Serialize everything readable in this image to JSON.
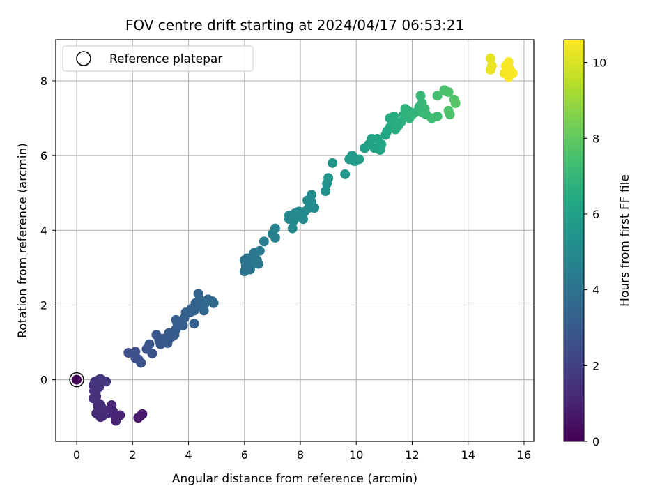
{
  "chart_data": {
    "type": "scatter",
    "title": "FOV centre drift starting at 2024/04/17 06:53:21",
    "xlabel": "Angular distance from reference (arcmin)",
    "ylabel": "Rotation from reference (arcmin)",
    "xlim": [
      -0.75,
      16.35
    ],
    "ylim": [
      -1.65,
      9.1
    ],
    "xticks": [
      0,
      2,
      4,
      6,
      8,
      10,
      12,
      14,
      16
    ],
    "yticks": [
      0,
      2,
      4,
      6,
      8
    ],
    "grid": true,
    "legend": {
      "position": "top-left",
      "entries": [
        "Reference platepar"
      ]
    },
    "reference_point": {
      "x": 0,
      "y": 0
    },
    "colorbar": {
      "label": "Hours from first FF file",
      "colormap": "viridis",
      "range": [
        0,
        10.6
      ],
      "ticks": [
        0,
        2,
        4,
        6,
        8,
        10
      ]
    },
    "points": [
      {
        "x": 0.0,
        "y": 0.0,
        "t": 0.1
      },
      {
        "x": 2.2,
        "y": -1.02,
        "t": 0.7
      },
      {
        "x": 2.35,
        "y": -0.92,
        "t": 0.7
      },
      {
        "x": 2.28,
        "y": -0.97,
        "t": 0.75
      },
      {
        "x": 1.4,
        "y": -1.1,
        "t": 1.0
      },
      {
        "x": 1.38,
        "y": -0.98,
        "t": 1.05
      },
      {
        "x": 1.55,
        "y": -0.95,
        "t": 1.05
      },
      {
        "x": 1.25,
        "y": -0.68,
        "t": 1.1
      },
      {
        "x": 1.3,
        "y": -0.85,
        "t": 1.1
      },
      {
        "x": 1.1,
        "y": -0.9,
        "t": 1.15
      },
      {
        "x": 0.95,
        "y": -0.95,
        "t": 1.2
      },
      {
        "x": 0.85,
        "y": -1.0,
        "t": 1.2
      },
      {
        "x": 0.7,
        "y": -0.9,
        "t": 1.25
      },
      {
        "x": 0.8,
        "y": -0.85,
        "t": 1.25
      },
      {
        "x": 0.9,
        "y": -0.75,
        "t": 1.3
      },
      {
        "x": 1.0,
        "y": -0.85,
        "t": 1.3
      },
      {
        "x": 0.75,
        "y": -0.7,
        "t": 1.35
      },
      {
        "x": 0.82,
        "y": -0.65,
        "t": 1.35
      },
      {
        "x": 0.6,
        "y": -0.5,
        "t": 1.4
      },
      {
        "x": 0.7,
        "y": -0.45,
        "t": 1.45
      },
      {
        "x": 0.62,
        "y": -0.3,
        "t": 1.45
      },
      {
        "x": 0.7,
        "y": -0.25,
        "t": 1.5
      },
      {
        "x": 0.6,
        "y": -0.15,
        "t": 1.5
      },
      {
        "x": 0.72,
        "y": -0.1,
        "t": 1.55
      },
      {
        "x": 0.65,
        "y": -0.05,
        "t": 1.55
      },
      {
        "x": 0.8,
        "y": 0.0,
        "t": 1.6
      },
      {
        "x": 0.9,
        "y": -0.02,
        "t": 1.6
      },
      {
        "x": 1.05,
        "y": -0.05,
        "t": 1.65
      },
      {
        "x": 0.85,
        "y": 0.02,
        "t": 1.65
      },
      {
        "x": 0.8,
        "y": -0.2,
        "t": 1.6
      },
      {
        "x": 0.68,
        "y": -0.35,
        "t": 1.5
      },
      {
        "x": 1.85,
        "y": 0.72,
        "t": 2.5
      },
      {
        "x": 2.1,
        "y": 0.75,
        "t": 2.55
      },
      {
        "x": 2.1,
        "y": 0.58,
        "t": 2.6
      },
      {
        "x": 2.2,
        "y": 0.55,
        "t": 2.6
      },
      {
        "x": 2.3,
        "y": 0.45,
        "t": 2.65
      },
      {
        "x": 2.7,
        "y": 0.7,
        "t": 2.7
      },
      {
        "x": 2.5,
        "y": 0.82,
        "t": 2.75
      },
      {
        "x": 2.6,
        "y": 0.95,
        "t": 2.75
      },
      {
        "x": 2.85,
        "y": 1.2,
        "t": 2.8
      },
      {
        "x": 2.95,
        "y": 1.05,
        "t": 2.85
      },
      {
        "x": 3.0,
        "y": 0.95,
        "t": 2.85
      },
      {
        "x": 3.1,
        "y": 1.1,
        "t": 2.9
      },
      {
        "x": 3.2,
        "y": 1.05,
        "t": 2.9
      },
      {
        "x": 3.25,
        "y": 0.98,
        "t": 2.95
      },
      {
        "x": 3.3,
        "y": 1.25,
        "t": 3.0
      },
      {
        "x": 3.4,
        "y": 1.15,
        "t": 3.0
      },
      {
        "x": 3.5,
        "y": 1.2,
        "t": 3.05
      },
      {
        "x": 3.55,
        "y": 1.35,
        "t": 3.05
      },
      {
        "x": 3.6,
        "y": 1.5,
        "t": 3.1
      },
      {
        "x": 3.55,
        "y": 1.6,
        "t": 3.1
      },
      {
        "x": 3.7,
        "y": 1.55,
        "t": 3.15
      },
      {
        "x": 3.8,
        "y": 1.45,
        "t": 3.15
      },
      {
        "x": 3.85,
        "y": 1.65,
        "t": 3.2
      },
      {
        "x": 3.9,
        "y": 1.8,
        "t": 3.25
      },
      {
        "x": 4.05,
        "y": 1.8,
        "t": 3.3
      },
      {
        "x": 4.1,
        "y": 1.9,
        "t": 3.3
      },
      {
        "x": 4.2,
        "y": 1.85,
        "t": 3.35
      },
      {
        "x": 4.25,
        "y": 2.05,
        "t": 3.35
      },
      {
        "x": 4.35,
        "y": 2.0,
        "t": 3.4
      },
      {
        "x": 4.4,
        "y": 2.15,
        "t": 3.4
      },
      {
        "x": 4.35,
        "y": 2.3,
        "t": 3.45
      },
      {
        "x": 4.5,
        "y": 1.95,
        "t": 3.45
      },
      {
        "x": 4.55,
        "y": 1.85,
        "t": 3.5
      },
      {
        "x": 4.6,
        "y": 2.05,
        "t": 3.5
      },
      {
        "x": 4.7,
        "y": 2.15,
        "t": 3.55
      },
      {
        "x": 4.85,
        "y": 2.1,
        "t": 3.55
      },
      {
        "x": 4.9,
        "y": 2.05,
        "t": 3.6
      },
      {
        "x": 4.2,
        "y": 1.5,
        "t": 3.2
      },
      {
        "x": 3.3,
        "y": 1.1,
        "t": 3.0
      },
      {
        "x": 6.0,
        "y": 2.9,
        "t": 4.0
      },
      {
        "x": 6.05,
        "y": 3.05,
        "t": 4.0
      },
      {
        "x": 6.0,
        "y": 3.2,
        "t": 4.05
      },
      {
        "x": 6.1,
        "y": 3.25,
        "t": 4.05
      },
      {
        "x": 6.2,
        "y": 3.0,
        "t": 4.1
      },
      {
        "x": 6.25,
        "y": 3.15,
        "t": 4.1
      },
      {
        "x": 6.3,
        "y": 3.3,
        "t": 4.15
      },
      {
        "x": 6.35,
        "y": 3.4,
        "t": 4.15
      },
      {
        "x": 6.45,
        "y": 3.2,
        "t": 4.2
      },
      {
        "x": 6.5,
        "y": 3.1,
        "t": 4.2
      },
      {
        "x": 6.55,
        "y": 3.45,
        "t": 4.25
      },
      {
        "x": 6.2,
        "y": 2.95,
        "t": 4.05
      },
      {
        "x": 6.7,
        "y": 3.7,
        "t": 4.5
      },
      {
        "x": 7.0,
        "y": 3.9,
        "t": 4.6
      },
      {
        "x": 7.1,
        "y": 4.05,
        "t": 4.65
      },
      {
        "x": 7.1,
        "y": 3.8,
        "t": 4.6
      },
      {
        "x": 7.6,
        "y": 4.3,
        "t": 4.8
      },
      {
        "x": 7.6,
        "y": 4.4,
        "t": 4.85
      },
      {
        "x": 7.75,
        "y": 4.25,
        "t": 4.85
      },
      {
        "x": 7.72,
        "y": 4.05,
        "t": 4.9
      },
      {
        "x": 7.85,
        "y": 4.35,
        "t": 4.9
      },
      {
        "x": 7.8,
        "y": 4.45,
        "t": 4.95
      },
      {
        "x": 7.95,
        "y": 4.5,
        "t": 4.95
      },
      {
        "x": 8.1,
        "y": 4.3,
        "t": 5.0
      },
      {
        "x": 8.15,
        "y": 4.5,
        "t": 5.0
      },
      {
        "x": 8.25,
        "y": 4.8,
        "t": 5.05
      },
      {
        "x": 8.3,
        "y": 4.6,
        "t": 5.05
      },
      {
        "x": 8.4,
        "y": 4.75,
        "t": 5.1
      },
      {
        "x": 8.5,
        "y": 4.6,
        "t": 5.1
      },
      {
        "x": 8.4,
        "y": 4.95,
        "t": 5.15
      },
      {
        "x": 8.9,
        "y": 5.05,
        "t": 5.3
      },
      {
        "x": 8.95,
        "y": 5.25,
        "t": 5.35
      },
      {
        "x": 9.0,
        "y": 5.4,
        "t": 5.4
      },
      {
        "x": 9.15,
        "y": 5.8,
        "t": 5.5
      },
      {
        "x": 9.6,
        "y": 5.5,
        "t": 5.6
      },
      {
        "x": 9.75,
        "y": 5.9,
        "t": 5.7
      },
      {
        "x": 9.85,
        "y": 6.0,
        "t": 5.75
      },
      {
        "x": 9.95,
        "y": 5.85,
        "t": 5.8
      },
      {
        "x": 10.1,
        "y": 5.9,
        "t": 5.85
      },
      {
        "x": 10.3,
        "y": 6.2,
        "t": 6.0
      },
      {
        "x": 10.45,
        "y": 6.3,
        "t": 6.05
      },
      {
        "x": 10.55,
        "y": 6.45,
        "t": 6.1
      },
      {
        "x": 10.65,
        "y": 6.2,
        "t": 6.15
      },
      {
        "x": 10.75,
        "y": 6.45,
        "t": 6.2
      },
      {
        "x": 10.85,
        "y": 6.15,
        "t": 6.2
      },
      {
        "x": 10.9,
        "y": 6.3,
        "t": 6.25
      },
      {
        "x": 11.05,
        "y": 6.55,
        "t": 6.3
      },
      {
        "x": 11.1,
        "y": 6.65,
        "t": 6.35
      },
      {
        "x": 11.2,
        "y": 6.75,
        "t": 6.4
      },
      {
        "x": 11.2,
        "y": 7.0,
        "t": 6.45
      },
      {
        "x": 11.3,
        "y": 6.85,
        "t": 6.5
      },
      {
        "x": 11.35,
        "y": 7.05,
        "t": 6.55
      },
      {
        "x": 11.4,
        "y": 6.7,
        "t": 6.55
      },
      {
        "x": 11.5,
        "y": 6.8,
        "t": 6.6
      },
      {
        "x": 11.6,
        "y": 6.9,
        "t": 6.65
      },
      {
        "x": 11.7,
        "y": 7.1,
        "t": 6.7
      },
      {
        "x": 11.75,
        "y": 7.25,
        "t": 6.75
      },
      {
        "x": 11.85,
        "y": 7.2,
        "t": 6.8
      },
      {
        "x": 11.9,
        "y": 7.0,
        "t": 6.8
      },
      {
        "x": 12.0,
        "y": 7.1,
        "t": 6.85
      },
      {
        "x": 12.1,
        "y": 7.15,
        "t": 6.9
      },
      {
        "x": 12.25,
        "y": 7.3,
        "t": 6.95
      },
      {
        "x": 12.3,
        "y": 7.6,
        "t": 7.0
      },
      {
        "x": 12.35,
        "y": 7.4,
        "t": 7.0
      },
      {
        "x": 12.35,
        "y": 7.15,
        "t": 7.05
      },
      {
        "x": 12.45,
        "y": 7.25,
        "t": 7.05
      },
      {
        "x": 12.5,
        "y": 7.1,
        "t": 7.1
      },
      {
        "x": 12.7,
        "y": 7.0,
        "t": 7.2
      },
      {
        "x": 12.9,
        "y": 7.05,
        "t": 7.3
      },
      {
        "x": 12.9,
        "y": 7.6,
        "t": 7.4
      },
      {
        "x": 13.15,
        "y": 7.75,
        "t": 7.5
      },
      {
        "x": 13.3,
        "y": 7.7,
        "t": 7.55
      },
      {
        "x": 13.3,
        "y": 7.2,
        "t": 7.6
      },
      {
        "x": 13.35,
        "y": 7.1,
        "t": 7.6
      },
      {
        "x": 13.5,
        "y": 7.5,
        "t": 7.7
      },
      {
        "x": 13.55,
        "y": 7.4,
        "t": 7.75
      },
      {
        "x": 14.8,
        "y": 8.6,
        "t": 10.2
      },
      {
        "x": 14.8,
        "y": 8.3,
        "t": 10.25
      },
      {
        "x": 14.85,
        "y": 8.4,
        "t": 10.3
      },
      {
        "x": 15.3,
        "y": 8.2,
        "t": 10.4
      },
      {
        "x": 15.35,
        "y": 8.4,
        "t": 10.45
      },
      {
        "x": 15.45,
        "y": 8.5,
        "t": 10.5
      },
      {
        "x": 15.5,
        "y": 8.3,
        "t": 10.5
      },
      {
        "x": 15.45,
        "y": 8.1,
        "t": 10.55
      },
      {
        "x": 15.6,
        "y": 8.2,
        "t": 10.55
      },
      {
        "x": 15.4,
        "y": 8.25,
        "t": 10.5
      }
    ]
  }
}
